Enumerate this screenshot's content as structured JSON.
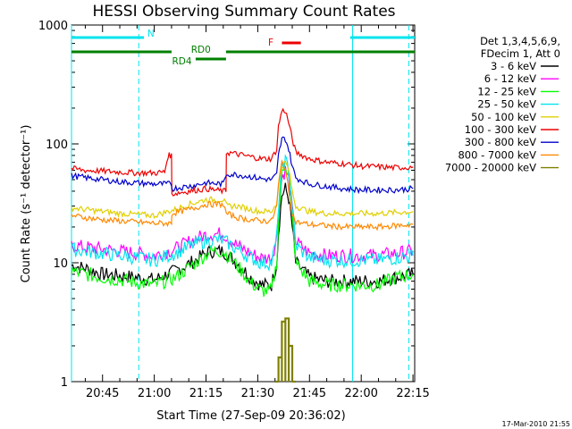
{
  "chart_data": {
    "type": "line",
    "title": "HESSI Observing Summary Count Rates",
    "xlabel": "Start Time (27-Sep-09 20:36:02)",
    "ylabel": "Count Rate (s⁻¹ detector⁻¹)",
    "y_scale": "log",
    "ylim": [
      1,
      1000
    ],
    "xlim_minutes": [
      36.0,
      135.5
    ],
    "x_tick_labels": [
      "20:45",
      "21:00",
      "21:15",
      "21:30",
      "21:45",
      "22:00",
      "22:15"
    ],
    "x_tick_minutes": [
      45,
      60,
      75,
      90,
      105,
      120,
      135
    ],
    "y_tick_labels": [
      "1",
      "10",
      "100",
      "1000"
    ],
    "y_ticks": [
      1,
      10,
      100,
      1000
    ],
    "legend_header": [
      "Det 1,3,4,5,6,9,",
      "FDecim 1, Att 0"
    ],
    "legend_position": "right",
    "timestamp": "17-Mar-2010 21:55",
    "flags": [
      {
        "label": "N",
        "color": "#00e5ee",
        "segments": [
          [
            36.0,
            57.0
          ],
          [
            116.8,
            135.5
          ]
        ]
      },
      {
        "label": "F",
        "color": "#ee0000",
        "segments": [
          [
            97.0,
            102.5
          ]
        ]
      },
      {
        "label": "RD0",
        "color": "#008000",
        "segments": [
          [
            36.0,
            65.0
          ],
          [
            80.8,
            135.5
          ]
        ]
      },
      {
        "label": "RD4",
        "color": "#008000",
        "segments": [
          [
            72.0,
            80.8
          ]
        ]
      }
    ],
    "vertical_markers": {
      "solid_minutes": [
        36.0,
        117.5
      ],
      "dashed_minutes": [
        55.5,
        133.8
      ],
      "color": "#00e5ee"
    },
    "series": [
      {
        "name": "3 - 6 keV",
        "color": "#000000",
        "x": [
          36,
          40,
          45,
          50,
          55,
          60,
          66,
          72,
          76,
          80,
          84,
          88,
          91,
          94,
          95.5,
          96,
          97,
          98,
          99,
          100,
          101,
          105,
          110,
          115,
          120,
          125,
          130,
          135
        ],
        "y": [
          9.5,
          9,
          8,
          7.8,
          7.5,
          7.2,
          8.5,
          10.5,
          12.5,
          12.5,
          10,
          7.5,
          6.5,
          6.5,
          10,
          18,
          37,
          42,
          35,
          20,
          10,
          7.5,
          7,
          7,
          7,
          7,
          7.5,
          8
        ]
      },
      {
        "name": "6 - 12 keV",
        "color": "#ff00ff",
        "x": [
          36,
          40,
          45,
          50,
          55,
          60,
          66,
          72,
          76,
          80,
          84,
          88,
          91,
          94,
          95.5,
          96,
          97,
          98,
          99,
          100,
          101,
          105,
          110,
          115,
          120,
          125,
          130,
          135
        ],
        "y": [
          14,
          13.5,
          13,
          12.5,
          12,
          11.5,
          13,
          16,
          17.5,
          17.5,
          14,
          12,
          11,
          11,
          16,
          28,
          52,
          60,
          50,
          28,
          15,
          12,
          11.5,
          11.5,
          11.5,
          11.5,
          12,
          12.5
        ]
      },
      {
        "name": "12 - 25 keV",
        "color": "#00ff00",
        "x": [
          36,
          40,
          45,
          50,
          55,
          60,
          66,
          72,
          76,
          80,
          84,
          88,
          91,
          94,
          95.5,
          96,
          97,
          98,
          99,
          100,
          101,
          105,
          110,
          115,
          120,
          125,
          130,
          135
        ],
        "y": [
          8.5,
          8,
          7.5,
          7.2,
          6.8,
          6.5,
          7.5,
          10,
          12.5,
          12.5,
          9.5,
          6.8,
          5.8,
          5.8,
          10,
          22,
          55,
          68,
          55,
          25,
          10,
          7,
          6.5,
          6.5,
          6.5,
          6.5,
          7.5,
          8
        ]
      },
      {
        "name": "25 - 50 keV",
        "color": "#00e5ee",
        "x": [
          36,
          40,
          45,
          50,
          55,
          60,
          66,
          72,
          76,
          80,
          84,
          88,
          91,
          94,
          95.5,
          96,
          97,
          98,
          99,
          100,
          101,
          105,
          110,
          115,
          120,
          125,
          130,
          135
        ],
        "y": [
          13,
          12.5,
          12,
          11.5,
          11,
          10.5,
          12,
          14.5,
          15.5,
          15.5,
          13,
          11,
          10,
          10,
          16,
          30,
          62,
          72,
          60,
          30,
          14,
          11,
          10.5,
          10.5,
          10.5,
          10.5,
          11,
          11.5
        ]
      },
      {
        "name": "50 - 100 keV",
        "color": "#e0d000",
        "x": [
          36,
          40,
          45,
          50,
          55,
          60,
          66,
          70,
          75,
          80,
          81,
          84,
          88,
          91,
          94,
          95.5,
          96,
          97,
          98,
          99,
          100,
          101,
          105,
          110,
          115,
          120,
          125,
          130,
          135
        ],
        "y": [
          29,
          28,
          27,
          26,
          25.5,
          25,
          28,
          31,
          34,
          34,
          30,
          30,
          28,
          27,
          27,
          32,
          45,
          65,
          70,
          60,
          40,
          30,
          27,
          26,
          26,
          26,
          26,
          26.5,
          27
        ]
      },
      {
        "name": "100 - 300 keV",
        "color": "#ee0000",
        "x": [
          36,
          40,
          45,
          50,
          55,
          60,
          63,
          64,
          65,
          65.1,
          70,
          75,
          80,
          80.8,
          80.9,
          84,
          88,
          91,
          94,
          95.5,
          96,
          97,
          98,
          99,
          100,
          101,
          105,
          110,
          115,
          120,
          125,
          130,
          135
        ],
        "y": [
          62,
          60,
          59,
          58,
          57,
          57,
          58,
          80,
          80,
          38,
          40,
          42,
          40,
          40,
          85,
          82,
          78,
          75,
          75,
          90,
          140,
          190,
          190,
          150,
          110,
          85,
          75,
          70,
          68,
          65,
          64,
          63,
          64
        ]
      },
      {
        "name": "300 - 800 keV",
        "color": "#0000cc",
        "x": [
          36,
          40,
          45,
          50,
          55,
          60,
          65,
          65.1,
          70,
          75,
          80,
          80.9,
          84,
          88,
          91,
          94,
          95.5,
          96,
          97,
          98,
          99,
          100,
          101,
          105,
          110,
          115,
          120,
          125,
          130,
          135
        ],
        "y": [
          54,
          52,
          50,
          48,
          47,
          46,
          46,
          42,
          44,
          47,
          46,
          56,
          55,
          53,
          51,
          50,
          55,
          80,
          110,
          110,
          90,
          65,
          52,
          46,
          44,
          42,
          41,
          41,
          41,
          42
        ]
      },
      {
        "name": "800 - 7000 keV",
        "color": "#ff8800",
        "x": [
          36,
          40,
          45,
          50,
          55,
          60,
          65,
          65.1,
          70,
          75,
          80,
          80.9,
          84,
          88,
          91,
          94,
          95.5,
          96,
          97,
          98,
          99,
          100,
          101,
          105,
          110,
          115,
          120,
          125,
          130,
          135
        ],
        "y": [
          25,
          24,
          23,
          22.5,
          22,
          21.5,
          21.5,
          26,
          28,
          31,
          31,
          26,
          24,
          23,
          22.5,
          22.5,
          30,
          45,
          70,
          62,
          40,
          26,
          22,
          21,
          20.5,
          20,
          20,
          20,
          20.5,
          21
        ]
      },
      {
        "name": "7000 - 20000 keV",
        "color": "#808000",
        "x": [
          36,
          94,
          95,
          96,
          97,
          98,
          99,
          100,
          101,
          135
        ],
        "y": [
          0,
          0,
          1,
          1.6,
          3.2,
          3.4,
          2,
          1,
          0,
          0
        ]
      }
    ]
  }
}
